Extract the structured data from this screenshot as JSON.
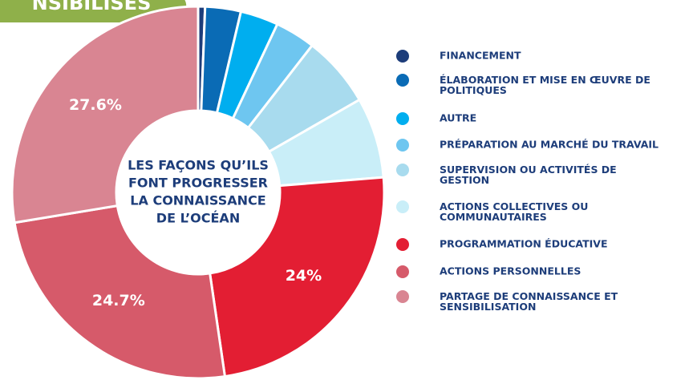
{
  "badge": "NSIBILISÉS",
  "chart_data": {
    "type": "donut",
    "center_label_lines": [
      "LES FAÇONS QU’ILS",
      "FONT PROGRESSER",
      "LA CONNAISSANCE",
      "DE L’OCÉAN"
    ],
    "categories": [
      "FINANCEMENT",
      "ÉLABORATION ET MISE EN ŒUVRE DE POLITIQUES",
      "AUTRE",
      "PRÉPARATION AU MARCHÉ DU TRAVAIL",
      "SUPERVISION OU ACTIVITÉS DE GESTION",
      "ACTIONS COLLECTIVES OU COMMUNAUTAIRES",
      "PROGRAMMATION ÉDUCATIVE",
      "ACTIONS PERSONNELLES",
      "PARTAGE DE CONNAISSANCE ET SENSIBILISATION"
    ],
    "values": [
      0.6,
      3.1,
      3.3,
      3.5,
      6.2,
      7,
      24,
      24.7,
      27.6
    ],
    "value_labels": [
      null,
      null,
      null,
      null,
      null,
      null,
      "24%",
      "24.7%",
      "27.6%"
    ],
    "colors": [
      "#1d3d7a",
      "#0a6bb5",
      "#00aeef",
      "#6ec6f0",
      "#a8dbee",
      "#c9eef8",
      "#e31e33",
      "#d65a6a",
      "#d98592"
    ]
  }
}
